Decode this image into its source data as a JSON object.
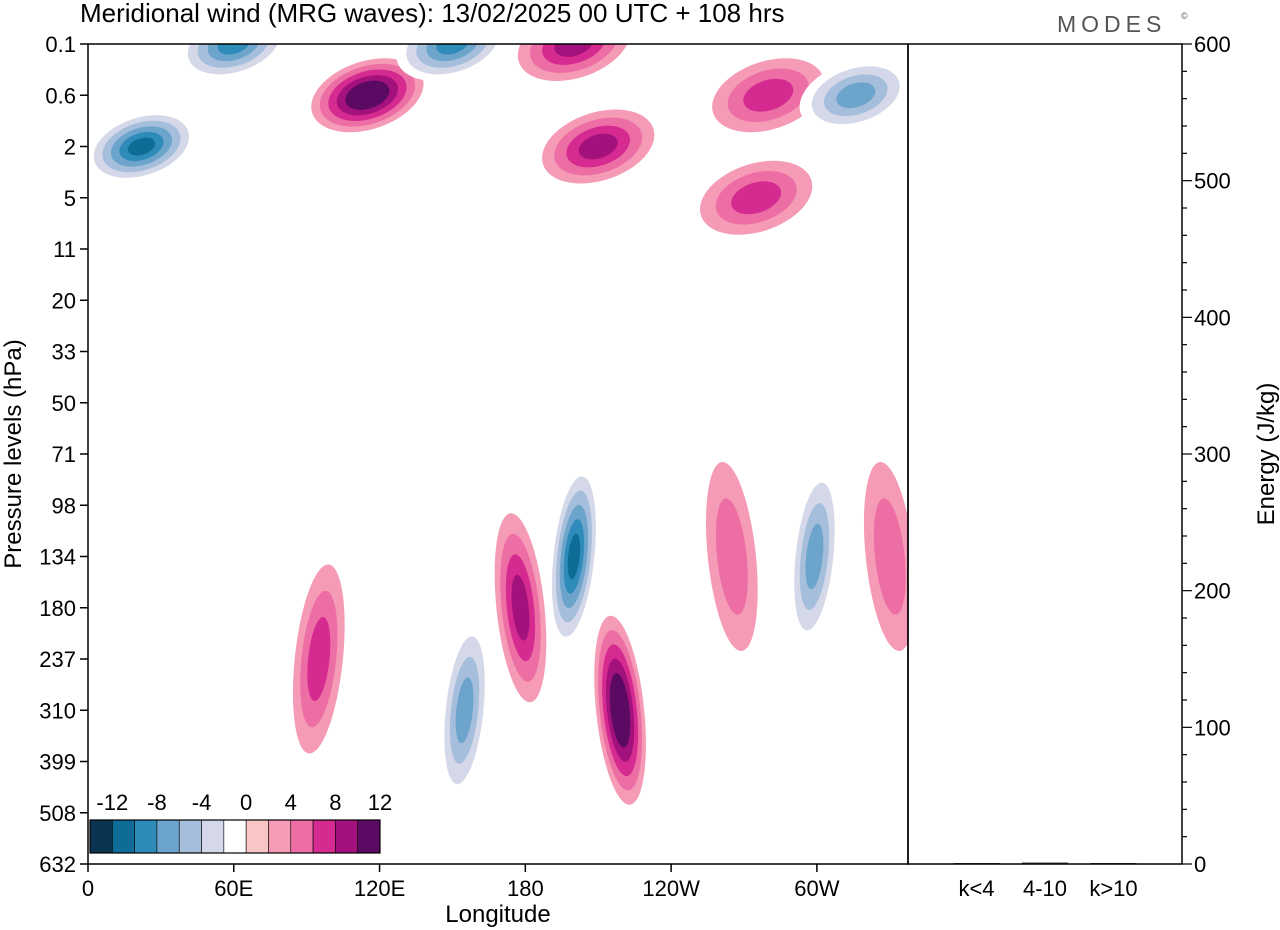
{
  "title": "Meridional wind (MRG waves):  13/02/2025  00 UTC  + 108 hrs",
  "brand": "MODES",
  "brand_mark": "©",
  "chart_data": [
    {
      "type": "heatmap",
      "title": "Meridional wind (MRG waves):  13/02/2025  00 UTC  + 108 hrs",
      "xlabel": "Longitude",
      "ylabel": "Pressure levels (hPa)",
      "x_ticks": [
        "0",
        "60E",
        "120E",
        "180",
        "120W",
        "60W"
      ],
      "x_tick_values": [
        0,
        60,
        120,
        180,
        240,
        300
      ],
      "x_range": [
        0,
        337.5
      ],
      "y_ticks": [
        "0.1",
        "0.6",
        "2",
        "5",
        "11",
        "20",
        "33",
        "50",
        "71",
        "98",
        "134",
        "180",
        "237",
        "310",
        "399",
        "508",
        "632"
      ],
      "colorbar": {
        "labels": [
          "-12",
          "-8",
          "-4",
          "0",
          "4",
          "8",
          "12"
        ],
        "levels": [
          -14,
          -12,
          -10,
          -8,
          -6,
          -4,
          -2,
          2,
          4,
          6,
          8,
          10,
          12,
          14
        ],
        "colors": [
          "#0a3350",
          "#0f6c96",
          "#2f8bb9",
          "#6ca4cc",
          "#a5bedb",
          "#d4d8e8",
          "#ffffff",
          "#f8c7c5",
          "#f59bb6",
          "#ec6ea5",
          "#d52a8f",
          "#a3117d",
          "#5a0a62"
        ]
      },
      "features": [
        {
          "lon": 22,
          "level": "2",
          "value": -13
        },
        {
          "lon": 60,
          "level": "0.1",
          "value": -12
        },
        {
          "lon": 115,
          "level": "0.6",
          "value": 14
        },
        {
          "lon": 150,
          "level": "0.1",
          "value": -11
        },
        {
          "lon": 200,
          "level": "0.1",
          "value": 10
        },
        {
          "lon": 210,
          "level": "2",
          "value": 9
        },
        {
          "lon": 280,
          "level": "0.6",
          "value": 8
        },
        {
          "lon": 275,
          "level": "5",
          "value": 8
        },
        {
          "lon": 316,
          "level": "0.6",
          "value": -9
        },
        {
          "lon": 155,
          "level": "310",
          "value": -9
        },
        {
          "lon": 178,
          "level": "180",
          "value": 9
        },
        {
          "lon": 200,
          "level": "134",
          "value": -13
        },
        {
          "lon": 219,
          "level": "310",
          "value": 13
        },
        {
          "lon": 299,
          "level": "134",
          "value": -10
        },
        {
          "lon": 265,
          "level": "134",
          "value": 6
        },
        {
          "lon": 95,
          "level": "237",
          "value": 7
        },
        {
          "lon": 330,
          "level": "134",
          "value": 6
        }
      ]
    },
    {
      "type": "bar",
      "categories": [
        "k<4",
        "4-10",
        "k>10"
      ],
      "values": [
        0,
        1,
        0
      ],
      "ylabel": "Energy (J/kg)",
      "ylim": [
        0,
        600
      ],
      "y_ticks": [
        0,
        100,
        200,
        300,
        400,
        500,
        600
      ]
    }
  ]
}
